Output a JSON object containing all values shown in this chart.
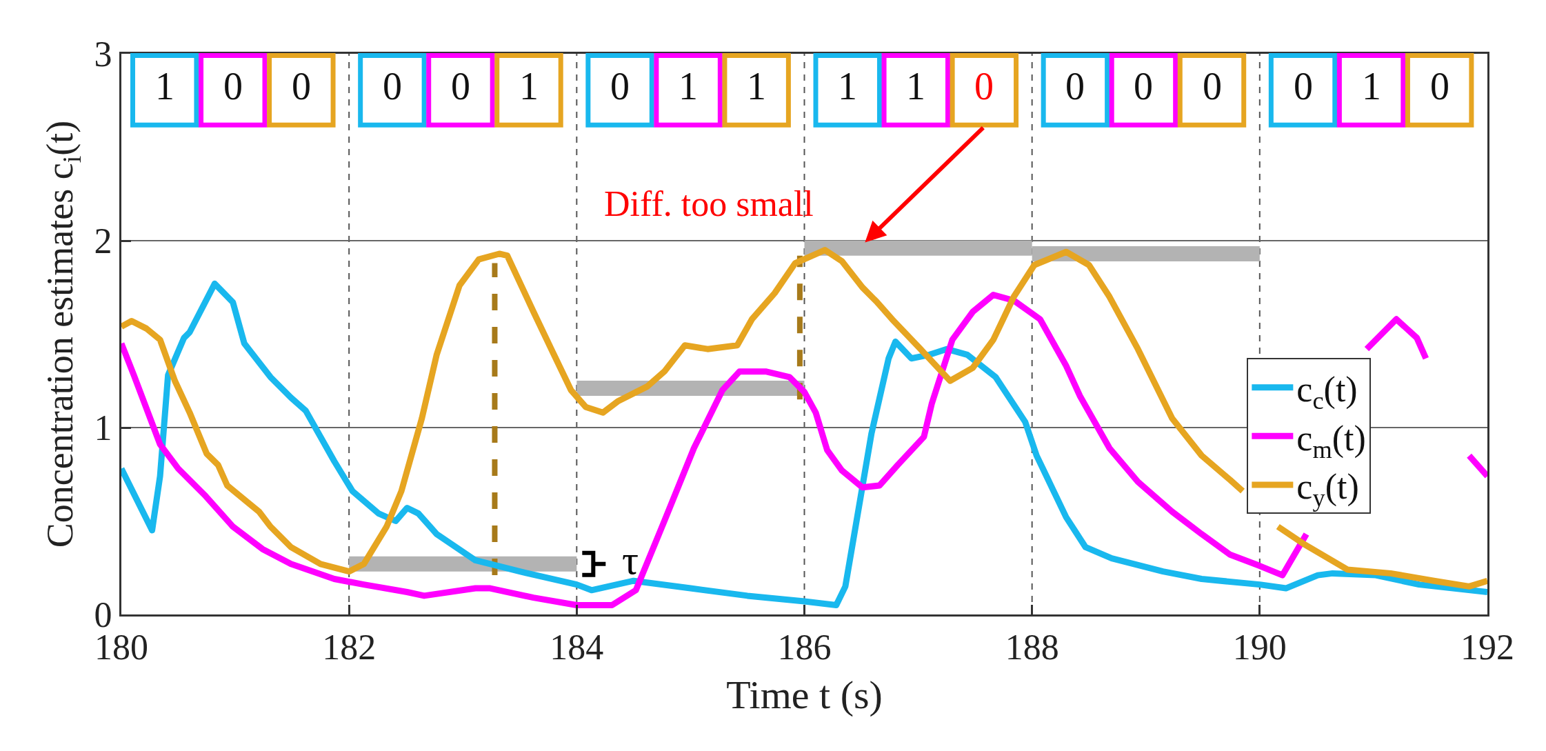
{
  "chart_data": {
    "type": "line",
    "xlabel": "Time t (s)",
    "ylabel": "Concentration estimates c$_{i}$(t)",
    "xlim": [
      180,
      192
    ],
    "xticks": [
      180,
      182,
      184,
      186,
      188,
      190,
      192
    ],
    "ylim": [
      0,
      3
    ],
    "yticks": [
      0,
      1,
      2,
      3
    ],
    "grid": "y",
    "legend": "right",
    "marker": "none",
    "line_style": "solid",
    "series": [
      {
        "type": "line",
        "color": "#b3b3b3",
        "x": [
          182,
          184
        ],
        "values": [
          0.27,
          0.27
        ]
      },
      {
        "type": "line",
        "color": "#b3b3b3",
        "x": [
          184,
          186
        ],
        "values": [
          1.21,
          1.21
        ]
      },
      {
        "type": "line",
        "color": "#b3b3b3",
        "x": [
          186,
          188
        ],
        "values": [
          1.96,
          1.96
        ]
      },
      {
        "type": "line",
        "color": "#b3b3b3",
        "x": [
          188,
          190
        ],
        "values": [
          1.93,
          1.93
        ]
      },
      {
        "type": "line",
        "line_style": "dashed",
        "color": "#a77a1a",
        "x": [
          183.28,
          183.28
        ],
        "values": [
          0.21,
          1.88
        ]
      },
      {
        "type": "line",
        "line_style": "dashed",
        "color": "#a77a1a",
        "x": [
          185.96,
          185.96
        ],
        "values": [
          1.15,
          1.92
        ]
      },
      {
        "name": "c$_{c}$(t)",
        "color": "#19b8ee",
        "x": [
          180,
          180.27,
          180.34,
          180.41,
          180.55,
          180.6,
          180.82,
          180.98,
          181.08,
          181.31,
          181.49,
          181.62,
          181.87,
          182.03,
          182.26,
          182.41,
          182.51,
          182.61,
          182.77,
          183.11,
          183.5,
          184,
          184.13,
          184.5,
          185,
          185.5,
          186,
          186.28,
          186.36,
          186.59,
          186.74,
          186.8,
          186.94,
          187.1,
          187.25,
          187.43,
          187.68,
          187.94,
          188.04,
          188.3,
          188.47,
          188.7,
          189.15,
          189.49,
          190,
          190.23,
          190.51,
          190.64,
          191.02,
          191.4,
          192
        ],
        "values": [
          0.78,
          0.45,
          0.74,
          1.28,
          1.48,
          1.51,
          1.77,
          1.67,
          1.45,
          1.27,
          1.16,
          1.09,
          0.82,
          0.66,
          0.54,
          0.5,
          0.57,
          0.54,
          0.43,
          0.29,
          0.23,
          0.16,
          0.13,
          0.18,
          0.14,
          0.1,
          0.07,
          0.05,
          0.15,
          0.97,
          1.37,
          1.46,
          1.37,
          1.39,
          1.42,
          1.39,
          1.27,
          1.03,
          0.85,
          0.52,
          0.36,
          0.3,
          0.23,
          0.19,
          0.16,
          0.14,
          0.21,
          0.22,
          0.21,
          0.16,
          0.12
        ]
      },
      {
        "name": "c$_{m}$(t)",
        "color": "#ff00ff",
        "x": [
          180,
          180.11,
          180.34,
          180.5,
          180.73,
          180.98,
          181.24,
          181.49,
          181.87,
          182.13,
          182.51,
          182.66,
          183.11,
          183.24,
          183.62,
          184,
          184.31,
          184.52,
          184.77,
          185.03,
          185.28,
          185.43,
          185.66,
          185.87,
          186,
          186.1,
          186.2,
          186.33,
          186.51,
          186.66,
          186.82,
          187.05,
          187.12,
          187.3,
          187.48,
          187.66,
          187.84,
          188.07,
          188.3,
          188.42,
          188.68,
          188.93,
          189.23,
          189.49,
          189.74,
          190,
          190.2,
          190.41,
          190.6,
          190.94,
          191.2,
          191.38,
          191.46,
          191.65,
          191.84,
          192
        ],
        "values": [
          1.45,
          1.28,
          0.91,
          0.78,
          0.64,
          0.47,
          0.35,
          0.27,
          0.19,
          0.16,
          0.12,
          0.1,
          0.14,
          0.14,
          0.09,
          0.05,
          0.05,
          0.13,
          0.5,
          0.89,
          1.2,
          1.3,
          1.3,
          1.27,
          1.19,
          1.08,
          0.88,
          0.77,
          0.68,
          0.69,
          0.8,
          0.95,
          1.13,
          1.47,
          1.62,
          1.71,
          1.68,
          1.58,
          1.33,
          1.17,
          0.89,
          0.71,
          0.55,
          0.43,
          0.32,
          0.26,
          0.21,
          0.43,
          null,
          1.42,
          1.58,
          1.48,
          1.37,
          null,
          0.85,
          0.74
        ]
      },
      {
        "name": "c$_{y}$(t)",
        "color": "#e6a521",
        "x": [
          180,
          180.09,
          180.22,
          180.34,
          180.47,
          180.6,
          180.75,
          180.85,
          180.93,
          181.11,
          181.21,
          181.31,
          181.49,
          181.75,
          182,
          182.13,
          182.33,
          182.46,
          182.64,
          182.77,
          182.97,
          183.14,
          183.32,
          183.39,
          183.62,
          183.8,
          183.95,
          184.08,
          184.23,
          184.36,
          184.62,
          184.77,
          184.95,
          185.15,
          185.41,
          185.54,
          185.74,
          185.92,
          186.18,
          186.33,
          186.51,
          186.64,
          186.77,
          187.02,
          187.28,
          187.48,
          187.66,
          187.84,
          188.02,
          188.3,
          188.5,
          188.68,
          188.93,
          189.23,
          189.49,
          189.74,
          189.85,
          190,
          190.16,
          190.38,
          190.77,
          191.15,
          191.53,
          191.84,
          192
        ],
        "values": [
          1.54,
          1.57,
          1.53,
          1.47,
          1.25,
          1.08,
          0.86,
          0.8,
          0.69,
          0.6,
          0.55,
          0.47,
          0.36,
          0.27,
          0.23,
          0.27,
          0.47,
          0.66,
          1.05,
          1.39,
          1.76,
          1.9,
          1.93,
          1.92,
          1.62,
          1.39,
          1.2,
          1.11,
          1.08,
          1.14,
          1.22,
          1.3,
          1.44,
          1.42,
          1.44,
          1.58,
          1.72,
          1.88,
          1.95,
          1.89,
          1.75,
          1.67,
          1.58,
          1.42,
          1.25,
          1.32,
          1.47,
          1.7,
          1.87,
          1.94,
          1.87,
          1.7,
          1.42,
          1.05,
          0.85,
          0.72,
          0.66,
          null,
          0.47,
          0.38,
          0.24,
          0.22,
          0.18,
          0.15,
          0.18
        ]
      }
    ],
    "ref_lines": [
      {
        "axis": "x",
        "value": 182,
        "color": "#555555",
        "line_style": "dashed"
      },
      {
        "axis": "x",
        "value": 184,
        "color": "#555555",
        "line_style": "dashed"
      },
      {
        "axis": "x",
        "value": 186,
        "color": "#555555",
        "line_style": "dashed"
      },
      {
        "axis": "x",
        "value": 188,
        "color": "#555555",
        "line_style": "dashed"
      },
      {
        "axis": "x",
        "value": 190,
        "color": "#555555",
        "line_style": "dashed"
      }
    ],
    "annotations": [
      "1",
      "0",
      "0",
      "0",
      "0",
      "1",
      "0",
      "1",
      "1",
      "1",
      "1",
      {
        "text": "0",
        "x": 186.48,
        "y": 1.96
      },
      "0",
      "0",
      "0",
      "0",
      "1",
      "0",
      "Diff. too small",
      {
        "text": "τ",
        "x": 184,
        "y": 0.27
      }
    ]
  }
}
